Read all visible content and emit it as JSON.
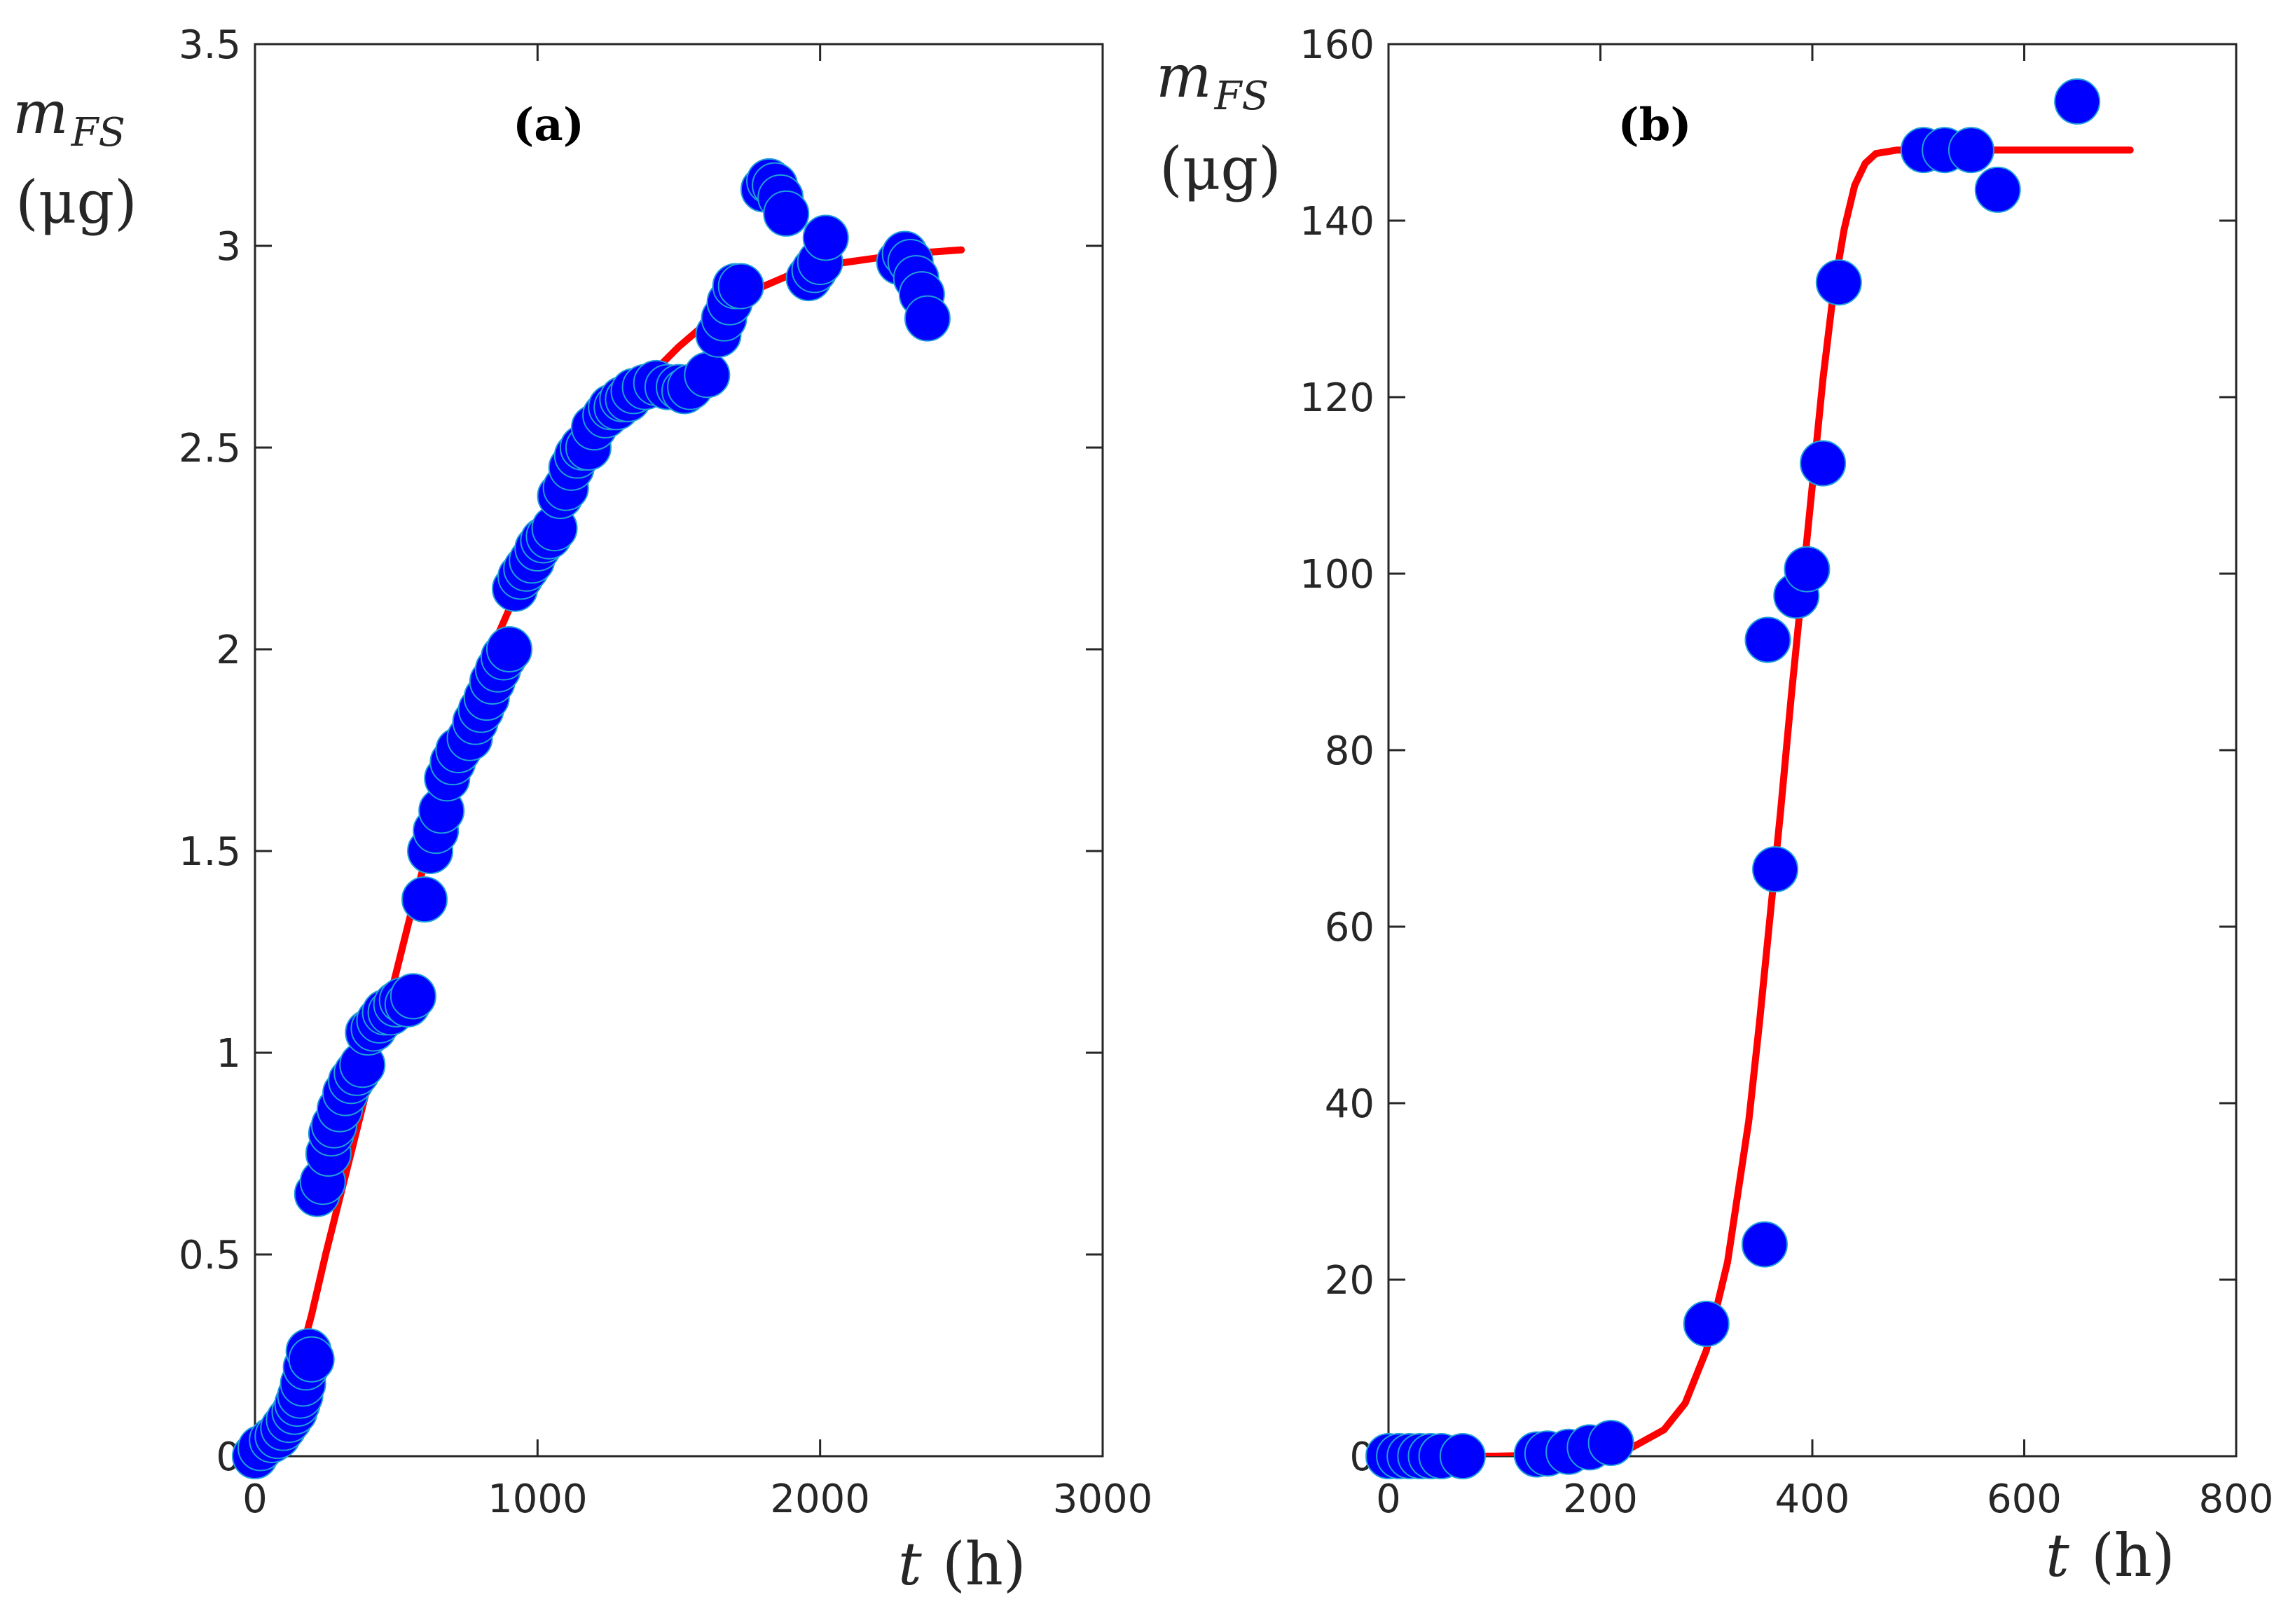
{
  "colors": {
    "marker": "#0000ff",
    "marker_edge": "#1f9fd9",
    "fit": "#ff0000",
    "axes": "#262626"
  },
  "chart_data": [
    {
      "type": "scatter",
      "panel": "(a)",
      "title": "(a)",
      "xlabel": {
        "var": "t",
        "unit": "(h)"
      },
      "ylabel": {
        "var": "m",
        "sub": "FS",
        "unit": "(μg)"
      },
      "xlim": [
        0,
        3000
      ],
      "ylim": [
        0,
        3.5
      ],
      "xticks": [
        0,
        1000,
        2000,
        3000
      ],
      "xtick_labels": [
        "0",
        "1000",
        "2000",
        "3000"
      ],
      "yticks": [
        0,
        0.5,
        1,
        1.5,
        2,
        2.5,
        3,
        3.5
      ],
      "ytick_labels": [
        "0",
        "0.5",
        "1",
        "1.5",
        "2",
        "2.5",
        "3",
        "3.5"
      ],
      "grid": false,
      "series": [
        {
          "name": "data",
          "style": "marker",
          "x": [
            0,
            20,
            60,
            80,
            100,
            120,
            140,
            150,
            160,
            170,
            180,
            190,
            200,
            220,
            240,
            260,
            270,
            280,
            300,
            320,
            340,
            360,
            380,
            400,
            420,
            440,
            460,
            480,
            500,
            520,
            540,
            560,
            600,
            620,
            640,
            660,
            680,
            700,
            720,
            760,
            780,
            800,
            820,
            840,
            860,
            880,
            900,
            920,
            940,
            960,
            980,
            1000,
            1020,
            1040,
            1060,
            1080,
            1100,
            1120,
            1140,
            1160,
            1180,
            1200,
            1240,
            1260,
            1280,
            1300,
            1320,
            1340,
            1380,
            1420,
            1460,
            1500,
            1520,
            1540,
            1600,
            1640,
            1660,
            1680,
            1700,
            1720,
            1800,
            1820,
            1840,
            1860,
            1880,
            1960,
            1980,
            2000,
            2020,
            2280,
            2300,
            2320,
            2340,
            2360,
            2380
          ],
          "y": [
            0,
            0.02,
            0.04,
            0.05,
            0.07,
            0.09,
            0.11,
            0.13,
            0.15,
            0.18,
            0.22,
            0.26,
            0.24,
            0.65,
            0.68,
            0.75,
            0.8,
            0.82,
            0.86,
            0.9,
            0.93,
            0.95,
            0.97,
            1.05,
            1.06,
            1.08,
            1.1,
            1.1,
            1.12,
            1.13,
            1.12,
            1.14,
            1.38,
            1.5,
            1.55,
            1.6,
            1.68,
            1.72,
            1.75,
            1.78,
            1.82,
            1.85,
            1.88,
            1.92,
            1.95,
            1.98,
            2.0,
            2.15,
            2.18,
            2.2,
            2.22,
            2.25,
            2.27,
            2.28,
            2.3,
            2.38,
            2.4,
            2.45,
            2.48,
            2.5,
            2.5,
            2.55,
            2.58,
            2.6,
            2.6,
            2.62,
            2.62,
            2.64,
            2.65,
            2.66,
            2.65,
            2.65,
            2.64,
            2.65,
            2.68,
            2.78,
            2.82,
            2.86,
            2.9,
            2.9,
            3.14,
            3.16,
            3.15,
            3.12,
            3.08,
            2.92,
            2.94,
            2.96,
            3.02,
            2.96,
            2.98,
            2.96,
            2.92,
            2.88,
            2.82
          ]
        },
        {
          "name": "fit",
          "style": "line",
          "x": [
            0,
            50,
            100,
            150,
            200,
            250,
            300,
            350,
            400,
            450,
            500,
            550,
            600,
            650,
            700,
            750,
            800,
            850,
            900,
            950,
            1000,
            1100,
            1200,
            1300,
            1400,
            1500,
            1600,
            1700,
            1800,
            1900,
            2000,
            2100,
            2200,
            2300,
            2400,
            2500
          ],
          "y": [
            0,
            0.04,
            0.11,
            0.22,
            0.35,
            0.5,
            0.64,
            0.78,
            0.92,
            1.06,
            1.2,
            1.34,
            1.47,
            1.6,
            1.72,
            1.83,
            1.93,
            2.02,
            2.1,
            2.18,
            2.25,
            2.39,
            2.5,
            2.6,
            2.68,
            2.75,
            2.81,
            2.86,
            2.9,
            2.93,
            2.95,
            2.96,
            2.97,
            2.98,
            2.985,
            2.99
          ]
        }
      ]
    },
    {
      "type": "scatter",
      "panel": "(b)",
      "title": "(b)",
      "xlabel": {
        "var": "t",
        "unit": "(h)"
      },
      "ylabel": {
        "var": "m",
        "sub": "FS",
        "unit": "(μg)"
      },
      "xlim": [
        0,
        800
      ],
      "ylim": [
        0,
        160
      ],
      "xticks": [
        0,
        200,
        400,
        600,
        800
      ],
      "xtick_labels": [
        "0",
        "200",
        "400",
        "600",
        "800"
      ],
      "yticks": [
        0,
        20,
        40,
        60,
        80,
        100,
        120,
        140,
        160
      ],
      "ytick_labels": [
        "0",
        "20",
        "40",
        "60",
        "80",
        "100",
        "120",
        "140",
        "160"
      ],
      "grid": false,
      "series": [
        {
          "name": "data",
          "style": "marker",
          "x": [
            0,
            10,
            20,
            30,
            40,
            50,
            70,
            140,
            150,
            170,
            190,
            210,
            300,
            355,
            358,
            365,
            385,
            395,
            410,
            425,
            505,
            525,
            550,
            575,
            650
          ],
          "y": [
            0,
            0,
            0,
            0,
            0,
            0,
            0,
            0.2,
            0.3,
            0.5,
            1,
            1.5,
            15,
            24,
            92.5,
            66.5,
            97.5,
            100.5,
            112.5,
            133,
            148,
            148,
            148,
            143.5,
            153.5
          ]
        },
        {
          "name": "fit",
          "style": "line",
          "x": [
            0,
            100,
            200,
            230,
            260,
            280,
            300,
            320,
            340,
            350,
            360,
            370,
            380,
            390,
            400,
            410,
            420,
            430,
            440,
            450,
            460,
            480,
            500,
            550,
            600,
            650,
            700
          ],
          "y": [
            0,
            0,
            0.3,
            1,
            3,
            6,
            12,
            22,
            38,
            49,
            61,
            73,
            86,
            98,
            110,
            122,
            132,
            139,
            144,
            146.5,
            147.6,
            148,
            148,
            148,
            148,
            148,
            148
          ]
        }
      ]
    }
  ]
}
